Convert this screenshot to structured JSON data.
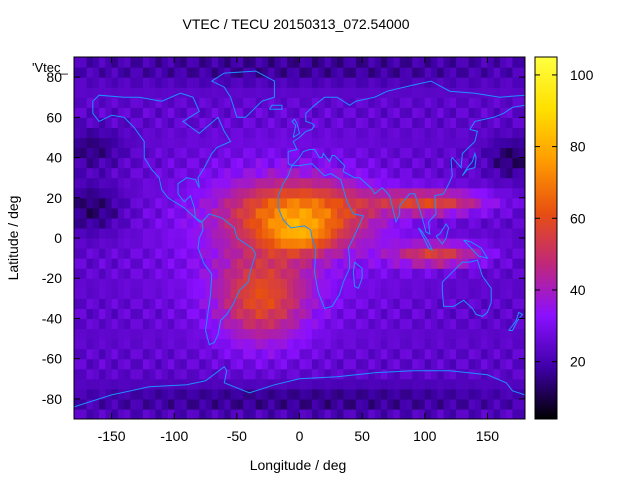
{
  "chart_data": {
    "type": "heatmap",
    "title": "VTEC / TECU 20150313_072.54000",
    "xlabel": "Longitude / deg",
    "ylabel": "Latitude / deg",
    "key_label": "'Vtec_",
    "xlim": [
      -180,
      180
    ],
    "ylim": [
      -90,
      90
    ],
    "x_ticks": [
      -150,
      -100,
      -50,
      0,
      50,
      100,
      150
    ],
    "y_ticks": [
      -80,
      -60,
      -40,
      -20,
      0,
      20,
      40,
      60,
      80
    ],
    "cbrange": [
      4,
      105
    ],
    "cb_ticks": [
      20,
      40,
      60,
      80,
      100
    ],
    "palette": [
      "#000000",
      "#3f00a8",
      "#8b10ff",
      "#c0287a",
      "#e85010",
      "#ff9c00",
      "#ffe000",
      "#ffff40"
    ],
    "coastline_color": "#1e90ff",
    "frame_color": "#000000",
    "grid": false
  }
}
